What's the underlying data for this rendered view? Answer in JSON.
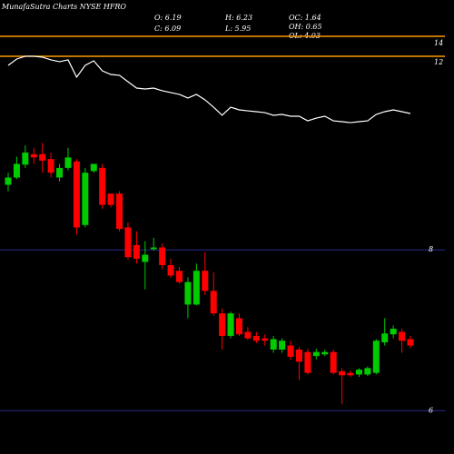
{
  "chart_data": {
    "type": "candlestick",
    "title": "MunafaSutra Charts NYSE HFRO",
    "stats": [
      "O: 6.19",
      "C: 6.09",
      "H: 6.23",
      "L: 5.95",
      "OC: 1.64",
      "OH: 0.65",
      "OL: 4.03"
    ],
    "up_color": "#00cc00",
    "down_color": "#ff0000",
    "open": [
      8.81,
      8.9,
      9.06,
      9.19,
      9.19,
      9.13,
      8.9,
      9.02,
      9.1,
      8.31,
      8.98,
      9.02,
      8.7,
      8.7,
      8.28,
      8.06,
      7.85,
      8.01,
      8.03,
      7.81,
      7.74,
      7.32,
      7.32,
      7.74,
      7.49,
      7.21,
      6.93,
      7.15,
      6.98,
      6.93,
      6.9,
      6.76,
      6.76,
      6.81,
      6.76,
      6.73,
      6.68,
      6.7,
      6.73,
      6.49,
      6.47,
      6.45,
      6.45,
      6.47,
      6.85,
      6.95,
      6.98,
      6.89
    ],
    "high": [
      8.96,
      9.16,
      9.3,
      9.27,
      9.33,
      9.21,
      9.07,
      9.27,
      9.13,
      9.02,
      9.07,
      9.07,
      8.7,
      8.73,
      8.34,
      8.23,
      8.11,
      8.15,
      8.08,
      7.89,
      7.79,
      7.66,
      7.83,
      7.97,
      7.72,
      7.27,
      7.23,
      7.21,
      7.04,
      6.98,
      6.95,
      6.93,
      6.9,
      6.87,
      6.79,
      6.77,
      6.77,
      6.76,
      6.76,
      6.53,
      6.5,
      6.53,
      6.55,
      6.89,
      7.15,
      7.06,
      7.02,
      6.93
    ],
    "low": [
      8.73,
      8.88,
      9.02,
      9.07,
      8.96,
      8.9,
      8.85,
      8.99,
      8.19,
      8.28,
      8.96,
      8.51,
      8.53,
      8.23,
      7.88,
      7.83,
      7.51,
      7.99,
      7.76,
      7.65,
      7.58,
      7.15,
      7.31,
      7.44,
      7.18,
      6.76,
      6.9,
      6.93,
      6.88,
      6.84,
      6.81,
      6.72,
      6.72,
      6.63,
      6.38,
      6.45,
      6.64,
      6.68,
      6.45,
      6.08,
      6.42,
      6.42,
      6.43,
      6.45,
      6.81,
      6.9,
      6.72,
      6.78
    ],
    "close": [
      8.9,
      9.07,
      9.21,
      9.15,
      9.11,
      8.96,
      9.02,
      9.15,
      8.28,
      8.96,
      9.07,
      8.56,
      8.56,
      8.26,
      7.91,
      7.89,
      7.94,
      8.03,
      7.81,
      7.68,
      7.6,
      7.6,
      7.74,
      7.49,
      7.21,
      6.93,
      7.21,
      6.95,
      6.9,
      6.87,
      6.87,
      6.89,
      6.87,
      6.67,
      6.61,
      6.47,
      6.73,
      6.73,
      6.47,
      6.44,
      6.44,
      6.51,
      6.53,
      6.87,
      6.96,
      7.02,
      6.87,
      6.81
    ],
    "ylim": [
      5.8,
      9.64
    ],
    "yticks": [
      8,
      6
    ],
    "grid_color": "#2a2a8a",
    "indicator": {
      "color": "#ffffff",
      "ylim": [
        5.24,
        15.71
      ],
      "yticks": [
        14,
        12
      ],
      "levels": [
        14.76,
        12.67
      ],
      "level_color": "#ff9900",
      "values": [
        11.71,
        12.38,
        12.67,
        12.67,
        12.57,
        12.29,
        12.1,
        12.29,
        10.48,
        11.71,
        12.19,
        11.14,
        10.76,
        10.67,
        10.0,
        9.33,
        9.24,
        9.33,
        9.05,
        8.86,
        8.67,
        8.29,
        8.67,
        8.1,
        7.33,
        6.48,
        7.33,
        7.05,
        6.95,
        6.86,
        6.76,
        6.48,
        6.57,
        6.38,
        6.38,
        5.9,
        6.19,
        6.38,
        5.9,
        5.81,
        5.71,
        5.81,
        5.9,
        6.57,
        6.86,
        7.05,
        6.86,
        6.67
      ]
    }
  }
}
